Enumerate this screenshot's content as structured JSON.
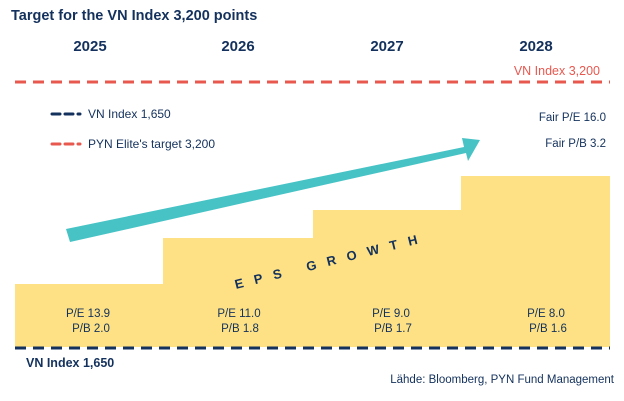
{
  "title": "Target for the VN Index 3,200 points",
  "years": [
    "2025",
    "2026",
    "2027",
    "2028"
  ],
  "target_line_label": "VN Index 3,200",
  "base_line_label": "VN Index 1,650",
  "legend": [
    {
      "label": "VN Index 1,650",
      "color": "#13315c"
    },
    {
      "label": "PYN Elite's target 3,200",
      "color": "#e8584f"
    }
  ],
  "fair_pe": "Fair P/E 16.0",
  "fair_pb": "Fair P/B 3.2",
  "arrow_label": "EPS GROWTH",
  "steps": [
    {
      "pe": "P/E 13.9",
      "pb": "P/B 2.0"
    },
    {
      "pe": "P/E 11.0",
      "pb": "P/B 1.8"
    },
    {
      "pe": "P/E 9.0",
      "pb": "P/B 1.7"
    },
    {
      "pe": "P/E 8.0",
      "pb": "P/B 1.6"
    }
  ],
  "source": "Lähde: Bloomberg, PYN Fund Management",
  "colors": {
    "navy": "#13315c",
    "red": "#e8584f",
    "yellow": "#fde184",
    "teal": "#47c3c6"
  }
}
